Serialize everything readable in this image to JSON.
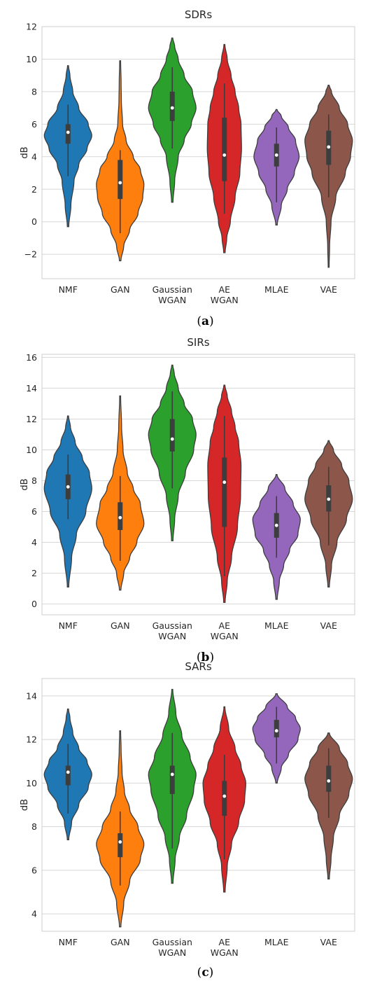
{
  "chart_data": [
    {
      "type": "violin",
      "title": "SDRs",
      "ylabel": "dB",
      "caption": "(a)",
      "caption_letter": "a",
      "ylim": [
        -3.5,
        12
      ],
      "yticks": [
        -2,
        0,
        2,
        4,
        6,
        8,
        10,
        12
      ],
      "ytick_labels": [
        "−2",
        "0",
        "2",
        "4",
        "6",
        "8",
        "10",
        "12"
      ],
      "grid": true,
      "categories": [
        {
          "label": [
            "NMF"
          ],
          "color": "#1f77b4"
        },
        {
          "label": [
            "GAN"
          ],
          "color": "#ff7f0e"
        },
        {
          "label": [
            "Gaussian",
            "WGAN"
          ],
          "color": "#2ca02c"
        },
        {
          "label": [
            "AE",
            "WGAN"
          ],
          "color": "#d62728"
        },
        {
          "label": [
            "MLAE"
          ],
          "color": "#9467bd"
        },
        {
          "label": [
            "VAE"
          ],
          "color": "#8c564b"
        }
      ],
      "violins": [
        {
          "min": -0.3,
          "max": 9.6,
          "q1": 4.8,
          "median": 5.5,
          "q3": 6.0,
          "wlo": 2.8,
          "whi": 7.2,
          "profile": [
            [
              -0.3,
              0.03
            ],
            [
              1,
              0.12
            ],
            [
              2.5,
              0.25
            ],
            [
              3.5,
              0.45
            ],
            [
              4.5,
              0.8
            ],
            [
              5.3,
              1.0
            ],
            [
              6,
              0.85
            ],
            [
              7,
              0.45
            ],
            [
              8,
              0.2
            ],
            [
              9,
              0.08
            ],
            [
              9.6,
              0.02
            ]
          ]
        },
        {
          "min": -2.4,
          "max": 9.9,
          "q1": 1.4,
          "median": 2.4,
          "q3": 3.8,
          "wlo": -0.7,
          "whi": 4.4,
          "profile": [
            [
              -2.4,
              0.03
            ],
            [
              -1.5,
              0.15
            ],
            [
              -0.5,
              0.4
            ],
            [
              0.5,
              0.75
            ],
            [
              1.5,
              0.95
            ],
            [
              2.3,
              1.0
            ],
            [
              3.2,
              0.85
            ],
            [
              4,
              0.55
            ],
            [
              5,
              0.25
            ],
            [
              6,
              0.1
            ],
            [
              7.5,
              0.05
            ],
            [
              8.5,
              0.04
            ],
            [
              9.9,
              0.02
            ]
          ]
        },
        {
          "min": 1.2,
          "max": 11.3,
          "q1": 6.2,
          "median": 7.0,
          "q3": 8.0,
          "wlo": 4.5,
          "whi": 9.5,
          "profile": [
            [
              1.2,
              0.03
            ],
            [
              2.5,
              0.1
            ],
            [
              4,
              0.25
            ],
            [
              5,
              0.5
            ],
            [
              6,
              0.8
            ],
            [
              7,
              1.0
            ],
            [
              8,
              0.85
            ],
            [
              9,
              0.5
            ],
            [
              10,
              0.25
            ],
            [
              10.8,
              0.1
            ],
            [
              11.3,
              0.02
            ]
          ]
        },
        {
          "min": -1.9,
          "max": 10.9,
          "q1": 2.5,
          "median": 4.1,
          "q3": 6.4,
          "wlo": 0.5,
          "whi": 8.5,
          "profile": [
            [
              -1.9,
              0.03
            ],
            [
              -1,
              0.1
            ],
            [
              0,
              0.25
            ],
            [
              1.5,
              0.45
            ],
            [
              3,
              0.65
            ],
            [
              4.5,
              0.72
            ],
            [
              6,
              0.7
            ],
            [
              7,
              0.6
            ],
            [
              8,
              0.45
            ],
            [
              9,
              0.28
            ],
            [
              10,
              0.12
            ],
            [
              10.9,
              0.02
            ]
          ]
        },
        {
          "min": -0.2,
          "max": 6.9,
          "q1": 3.4,
          "median": 4.1,
          "q3": 4.8,
          "wlo": 1.2,
          "whi": 5.8,
          "profile": [
            [
              -0.2,
              0.03
            ],
            [
              1,
              0.2
            ],
            [
              2,
              0.45
            ],
            [
              3,
              0.75
            ],
            [
              4,
              0.95
            ],
            [
              5,
              0.8
            ],
            [
              5.8,
              0.5
            ],
            [
              6.5,
              0.2
            ],
            [
              6.9,
              0.02
            ]
          ]
        },
        {
          "min": -2.8,
          "max": 8.4,
          "q1": 3.5,
          "median": 4.6,
          "q3": 5.6,
          "wlo": 1.5,
          "whi": 6.6,
          "profile": [
            [
              -2.8,
              0.02
            ],
            [
              -1.5,
              0.04
            ],
            [
              0,
              0.1
            ],
            [
              1.5,
              0.3
            ],
            [
              3,
              0.7
            ],
            [
              4,
              0.92
            ],
            [
              5,
              1.0
            ],
            [
              6,
              0.8
            ],
            [
              7,
              0.45
            ],
            [
              8,
              0.12
            ],
            [
              8.4,
              0.02
            ]
          ]
        }
      ]
    },
    {
      "type": "violin",
      "title": "SIRs",
      "ylabel": "dB",
      "caption": "(b)",
      "caption_letter": "b",
      "ylim": [
        -0.7,
        16.2
      ],
      "yticks": [
        0,
        2,
        4,
        6,
        8,
        10,
        12,
        14,
        16
      ],
      "ytick_labels": [
        "0",
        "2",
        "4",
        "6",
        "8",
        "10",
        "12",
        "14",
        "16"
      ],
      "grid": true,
      "categories": [
        {
          "label": [
            "NMF"
          ],
          "color": "#1f77b4"
        },
        {
          "label": [
            "GAN"
          ],
          "color": "#ff7f0e"
        },
        {
          "label": [
            "Gaussian",
            "WGAN"
          ],
          "color": "#2ca02c"
        },
        {
          "label": [
            "AE",
            "WGAN"
          ],
          "color": "#d62728"
        },
        {
          "label": [
            "MLAE"
          ],
          "color": "#9467bd"
        },
        {
          "label": [
            "VAE"
          ],
          "color": "#8c564b"
        }
      ],
      "violins": [
        {
          "min": 1.1,
          "max": 12.2,
          "q1": 6.8,
          "median": 7.6,
          "q3": 8.4,
          "wlo": 5.5,
          "whi": 9.7,
          "profile": [
            [
              1.1,
              0.03
            ],
            [
              3,
              0.15
            ],
            [
              4.5,
              0.35
            ],
            [
              6,
              0.75
            ],
            [
              7.5,
              1.0
            ],
            [
              8.5,
              0.9
            ],
            [
              9.5,
              0.6
            ],
            [
              10.5,
              0.3
            ],
            [
              11.5,
              0.1
            ],
            [
              12.2,
              0.02
            ]
          ]
        },
        {
          "min": 0.9,
          "max": 13.5,
          "q1": 4.8,
          "median": 5.6,
          "q3": 6.6,
          "wlo": 2.8,
          "whi": 8.3,
          "profile": [
            [
              0.9,
              0.03
            ],
            [
              2,
              0.15
            ],
            [
              3,
              0.4
            ],
            [
              4,
              0.7
            ],
            [
              5.2,
              1.0
            ],
            [
              6.5,
              0.85
            ],
            [
              7.5,
              0.55
            ],
            [
              8.5,
              0.3
            ],
            [
              10,
              0.12
            ],
            [
              11.5,
              0.06
            ],
            [
              13.5,
              0.02
            ]
          ]
        },
        {
          "min": 4.1,
          "max": 15.5,
          "q1": 9.9,
          "median": 10.7,
          "q3": 12.0,
          "wlo": 7.5,
          "whi": 13.8,
          "profile": [
            [
              4.1,
              0.03
            ],
            [
              5.5,
              0.1
            ],
            [
              7,
              0.25
            ],
            [
              8.5,
              0.55
            ],
            [
              10,
              0.9
            ],
            [
              11,
              1.0
            ],
            [
              12,
              0.85
            ],
            [
              13,
              0.5
            ],
            [
              14,
              0.25
            ],
            [
              15,
              0.08
            ],
            [
              15.5,
              0.02
            ]
          ]
        },
        {
          "min": 0.1,
          "max": 14.2,
          "q1": 5.0,
          "median": 7.9,
          "q3": 9.5,
          "wlo": 1.8,
          "whi": 12.2,
          "profile": [
            [
              0.1,
              0.03
            ],
            [
              1.5,
              0.12
            ],
            [
              3,
              0.3
            ],
            [
              5,
              0.55
            ],
            [
              7,
              0.68
            ],
            [
              9,
              0.7
            ],
            [
              10.5,
              0.6
            ],
            [
              11.5,
              0.45
            ],
            [
              12.5,
              0.3
            ],
            [
              13.5,
              0.12
            ],
            [
              14.2,
              0.02
            ]
          ]
        },
        {
          "min": 0.3,
          "max": 8.4,
          "q1": 4.3,
          "median": 5.1,
          "q3": 5.9,
          "wlo": 3.0,
          "whi": 7.0,
          "profile": [
            [
              0.3,
              0.03
            ],
            [
              1.5,
              0.12
            ],
            [
              2.5,
              0.3
            ],
            [
              3.5,
              0.55
            ],
            [
              4.5,
              0.9
            ],
            [
              5.5,
              1.0
            ],
            [
              6.5,
              0.7
            ],
            [
              7.5,
              0.35
            ],
            [
              8.4,
              0.02
            ]
          ]
        },
        {
          "min": 1.1,
          "max": 10.6,
          "q1": 6.0,
          "median": 6.8,
          "q3": 7.7,
          "wlo": 3.8,
          "whi": 8.9,
          "profile": [
            [
              1.1,
              0.03
            ],
            [
              2.5,
              0.12
            ],
            [
              4,
              0.35
            ],
            [
              5.5,
              0.75
            ],
            [
              6.8,
              1.0
            ],
            [
              8,
              0.85
            ],
            [
              9,
              0.55
            ],
            [
              10,
              0.2
            ],
            [
              10.6,
              0.02
            ]
          ]
        }
      ]
    },
    {
      "type": "violin",
      "title": "SARs",
      "ylabel": "dB",
      "caption": "(c)",
      "caption_letter": "c",
      "ylim": [
        3.2,
        14.8
      ],
      "yticks": [
        4,
        6,
        8,
        10,
        12,
        14
      ],
      "ytick_labels": [
        "4",
        "6",
        "8",
        "10",
        "12",
        "14"
      ],
      "grid": true,
      "categories": [
        {
          "label": [
            "NMF"
          ],
          "color": "#1f77b4"
        },
        {
          "label": [
            "GAN"
          ],
          "color": "#ff7f0e"
        },
        {
          "label": [
            "Gaussian",
            "WGAN"
          ],
          "color": "#2ca02c"
        },
        {
          "label": [
            "AE",
            "WGAN"
          ],
          "color": "#d62728"
        },
        {
          "label": [
            "MLAE"
          ],
          "color": "#9467bd"
        },
        {
          "label": [
            "VAE"
          ],
          "color": "#8c564b"
        }
      ],
      "violins": [
        {
          "min": 7.4,
          "max": 13.4,
          "q1": 9.9,
          "median": 10.5,
          "q3": 10.8,
          "wlo": 8.6,
          "whi": 11.8,
          "profile": [
            [
              7.4,
              0.03
            ],
            [
              8.2,
              0.15
            ],
            [
              9,
              0.45
            ],
            [
              9.8,
              0.85
            ],
            [
              10.4,
              1.0
            ],
            [
              11,
              0.8
            ],
            [
              11.6,
              0.45
            ],
            [
              12.3,
              0.2
            ],
            [
              13,
              0.08
            ],
            [
              13.4,
              0.02
            ]
          ]
        },
        {
          "min": 3.4,
          "max": 12.4,
          "q1": 6.6,
          "median": 7.3,
          "q3": 7.7,
          "wlo": 5.3,
          "whi": 8.7,
          "profile": [
            [
              3.4,
              0.03
            ],
            [
              4.5,
              0.15
            ],
            [
              5.5,
              0.4
            ],
            [
              6.5,
              0.85
            ],
            [
              7.2,
              1.0
            ],
            [
              8,
              0.75
            ],
            [
              8.8,
              0.4
            ],
            [
              9.6,
              0.18
            ],
            [
              10.5,
              0.08
            ],
            [
              11.5,
              0.04
            ],
            [
              12.4,
              0.02
            ]
          ]
        },
        {
          "min": 5.4,
          "max": 14.3,
          "q1": 9.5,
          "median": 10.4,
          "q3": 10.8,
          "wlo": 7.0,
          "whi": 12.3,
          "profile": [
            [
              5.4,
              0.03
            ],
            [
              6.5,
              0.12
            ],
            [
              7.5,
              0.3
            ],
            [
              8.5,
              0.6
            ],
            [
              9.7,
              0.9
            ],
            [
              10.4,
              1.0
            ],
            [
              11.2,
              0.75
            ],
            [
              12.2,
              0.4
            ],
            [
              13.2,
              0.15
            ],
            [
              14.3,
              0.02
            ]
          ]
        },
        {
          "min": 5.0,
          "max": 13.5,
          "q1": 8.5,
          "median": 9.4,
          "q3": 10.1,
          "wlo": 6.5,
          "whi": 11.3,
          "profile": [
            [
              5,
              0.03
            ],
            [
              6.2,
              0.12
            ],
            [
              7.2,
              0.3
            ],
            [
              8.2,
              0.6
            ],
            [
              9.2,
              0.85
            ],
            [
              10,
              0.9
            ],
            [
              10.8,
              0.7
            ],
            [
              11.6,
              0.45
            ],
            [
              12.5,
              0.18
            ],
            [
              13.5,
              0.02
            ]
          ]
        },
        {
          "min": 10.0,
          "max": 14.1,
          "q1": 12.1,
          "median": 12.4,
          "q3": 12.9,
          "wlo": 10.9,
          "whi": 13.5,
          "profile": [
            [
              10,
              0.03
            ],
            [
              10.7,
              0.2
            ],
            [
              11.3,
              0.5
            ],
            [
              12,
              0.9
            ],
            [
              12.5,
              1.0
            ],
            [
              13,
              0.8
            ],
            [
              13.5,
              0.45
            ],
            [
              14.1,
              0.03
            ]
          ]
        },
        {
          "min": 5.6,
          "max": 12.3,
          "q1": 9.6,
          "median": 10.1,
          "q3": 10.8,
          "wlo": 8.4,
          "whi": 11.6,
          "profile": [
            [
              5.6,
              0.03
            ],
            [
              6.5,
              0.1
            ],
            [
              7.5,
              0.2
            ],
            [
              8.5,
              0.45
            ],
            [
              9.5,
              0.85
            ],
            [
              10.2,
              1.0
            ],
            [
              10.9,
              0.8
            ],
            [
              11.6,
              0.45
            ],
            [
              12.3,
              0.03
            ]
          ]
        }
      ]
    }
  ]
}
